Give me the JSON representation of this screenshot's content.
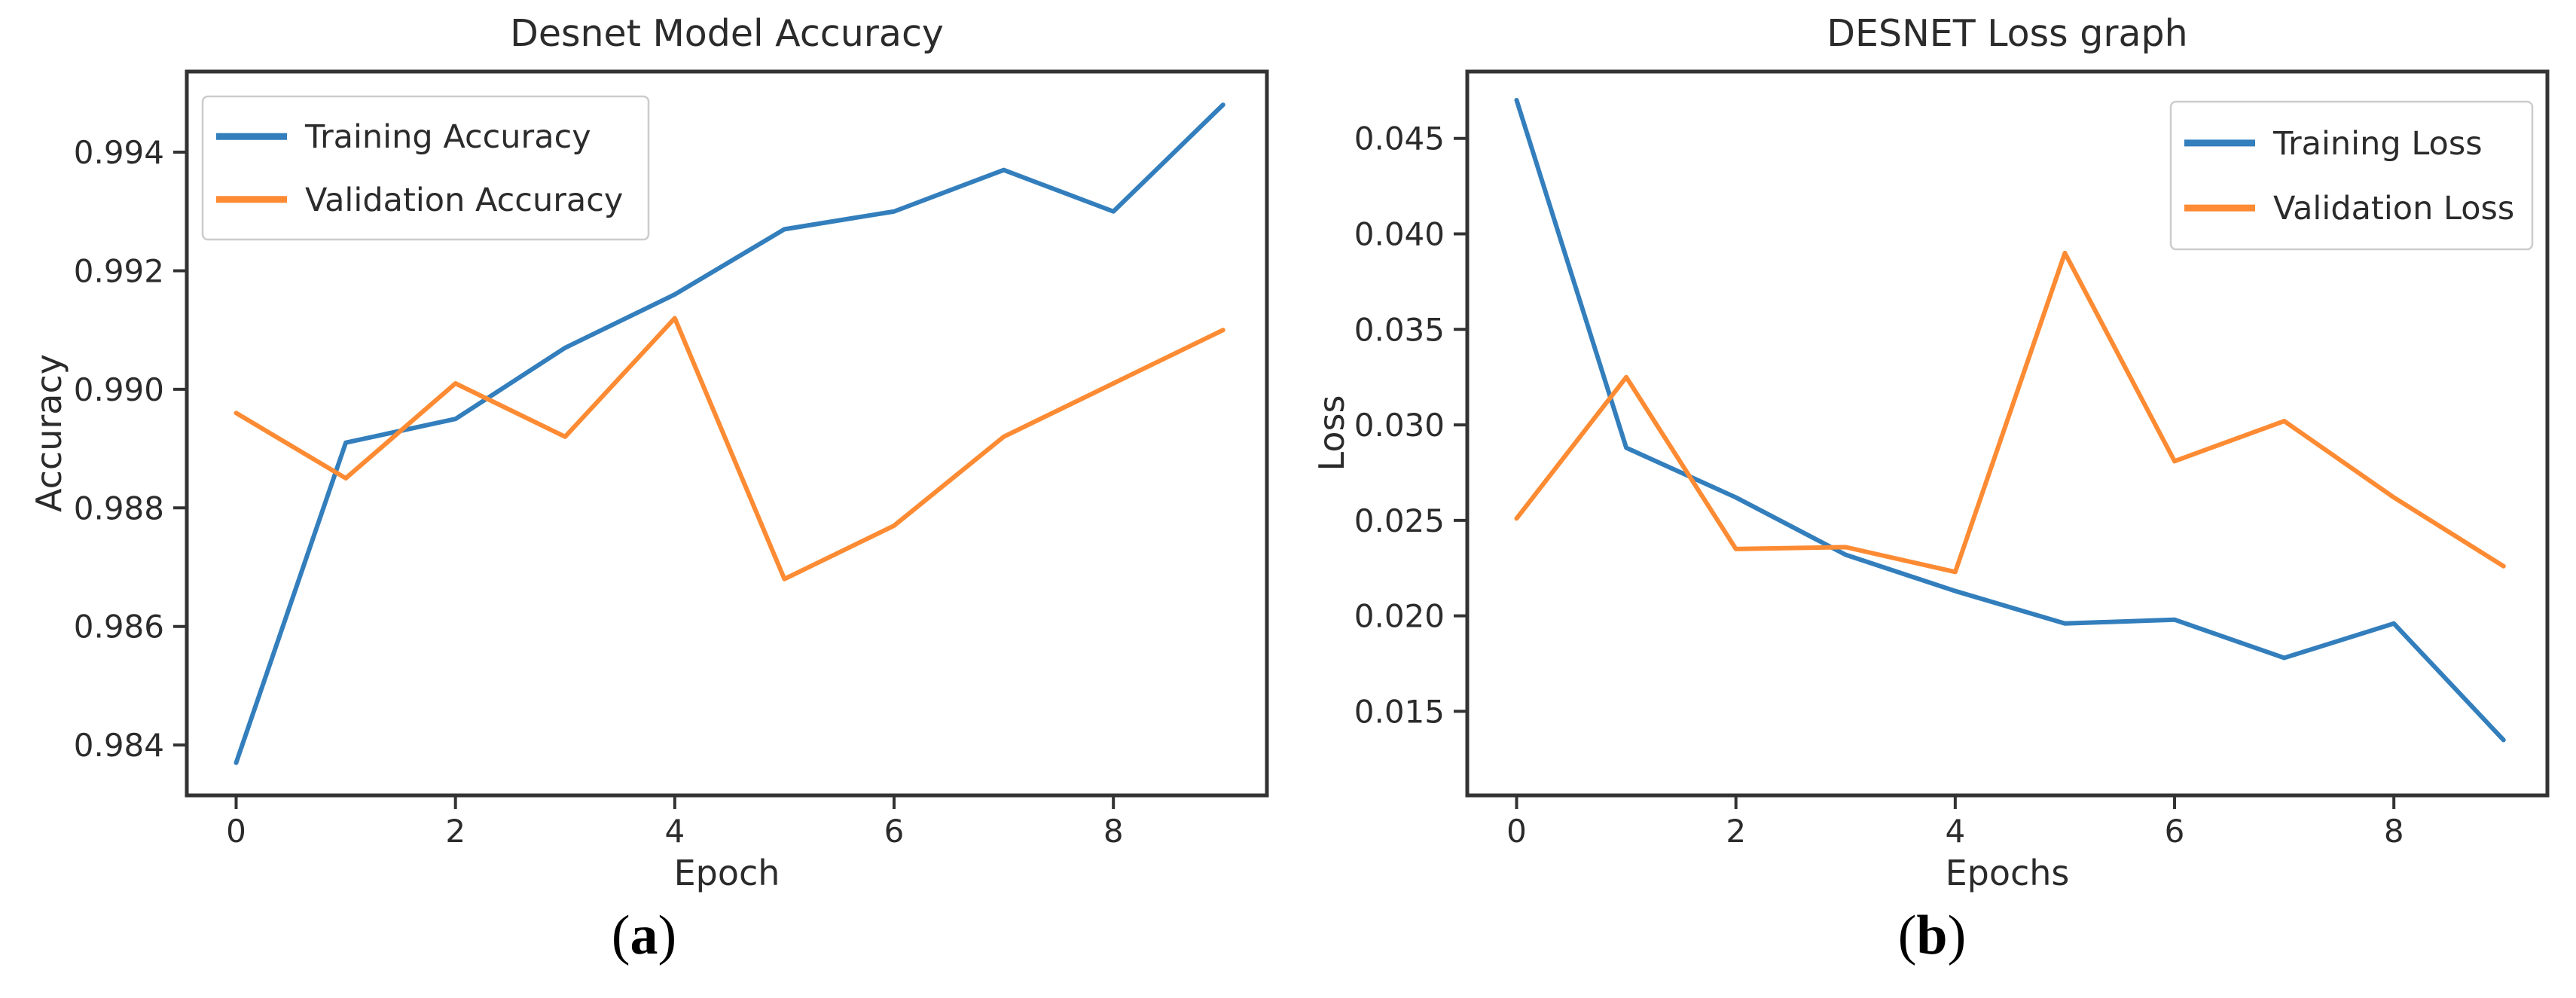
{
  "figure": {
    "background": "#ffffff",
    "text_color": "#2b2b2b",
    "spine_color": "#333333",
    "captions": [
      {
        "open": "(",
        "label": "a",
        "close": ")"
      },
      {
        "open": "(",
        "label": "b",
        "close": ")"
      }
    ]
  },
  "chart_data": [
    {
      "type": "line",
      "title": "Desnet Model Accuracy",
      "xlabel": "Epoch",
      "ylabel": "Accuracy",
      "grid": false,
      "legend_position": "upper-left",
      "x": [
        0,
        1,
        2,
        3,
        4,
        5,
        6,
        7,
        8,
        9
      ],
      "xticks": [
        0,
        2,
        4,
        6,
        8
      ],
      "xlim": [
        -0.45,
        9.4
      ],
      "yticks": [
        0.984,
        0.986,
        0.988,
        0.99,
        0.992,
        0.994
      ],
      "ytick_labels": [
        "0.984",
        "0.986",
        "0.988",
        "0.990",
        "0.992",
        "0.994"
      ],
      "ylim": [
        0.98315,
        0.99536
      ],
      "series": [
        {
          "name": "Training Accuracy",
          "color": "#337ebc",
          "values": [
            0.9837,
            0.9891,
            0.9895,
            0.9907,
            0.9916,
            0.9927,
            0.993,
            0.9937,
            0.993,
            0.9948
          ]
        },
        {
          "name": "Validation Accuracy",
          "color": "#fd8b33",
          "values": [
            0.9896,
            0.9885,
            0.9901,
            0.9892,
            0.9912,
            0.9868,
            0.9877,
            0.9892,
            0.9901,
            0.991
          ]
        }
      ]
    },
    {
      "type": "line",
      "title": "DESNET Loss graph",
      "xlabel": "Epochs",
      "ylabel": "Loss",
      "grid": false,
      "legend_position": "upper-right",
      "x": [
        0,
        1,
        2,
        3,
        4,
        5,
        6,
        7,
        8,
        9
      ],
      "xticks": [
        0,
        2,
        4,
        6,
        8
      ],
      "xlim": [
        -0.45,
        9.4
      ],
      "yticks": [
        0.015,
        0.02,
        0.025,
        0.03,
        0.035,
        0.04,
        0.045
      ],
      "ytick_labels": [
        "0.015",
        "0.020",
        "0.025",
        "0.030",
        "0.035",
        "0.040",
        "0.045"
      ],
      "ylim": [
        0.0106,
        0.0485
      ],
      "series": [
        {
          "name": "Training Loss",
          "color": "#337ebc",
          "values": [
            0.047,
            0.0288,
            0.0262,
            0.0232,
            0.0213,
            0.0196,
            0.0198,
            0.0178,
            0.0196,
            0.0135
          ]
        },
        {
          "name": "Validation Loss",
          "color": "#fd8b33",
          "values": [
            0.0251,
            0.0325,
            0.0235,
            0.0236,
            0.0223,
            0.039,
            0.0281,
            0.0302,
            0.0262,
            0.0226
          ]
        }
      ]
    }
  ]
}
